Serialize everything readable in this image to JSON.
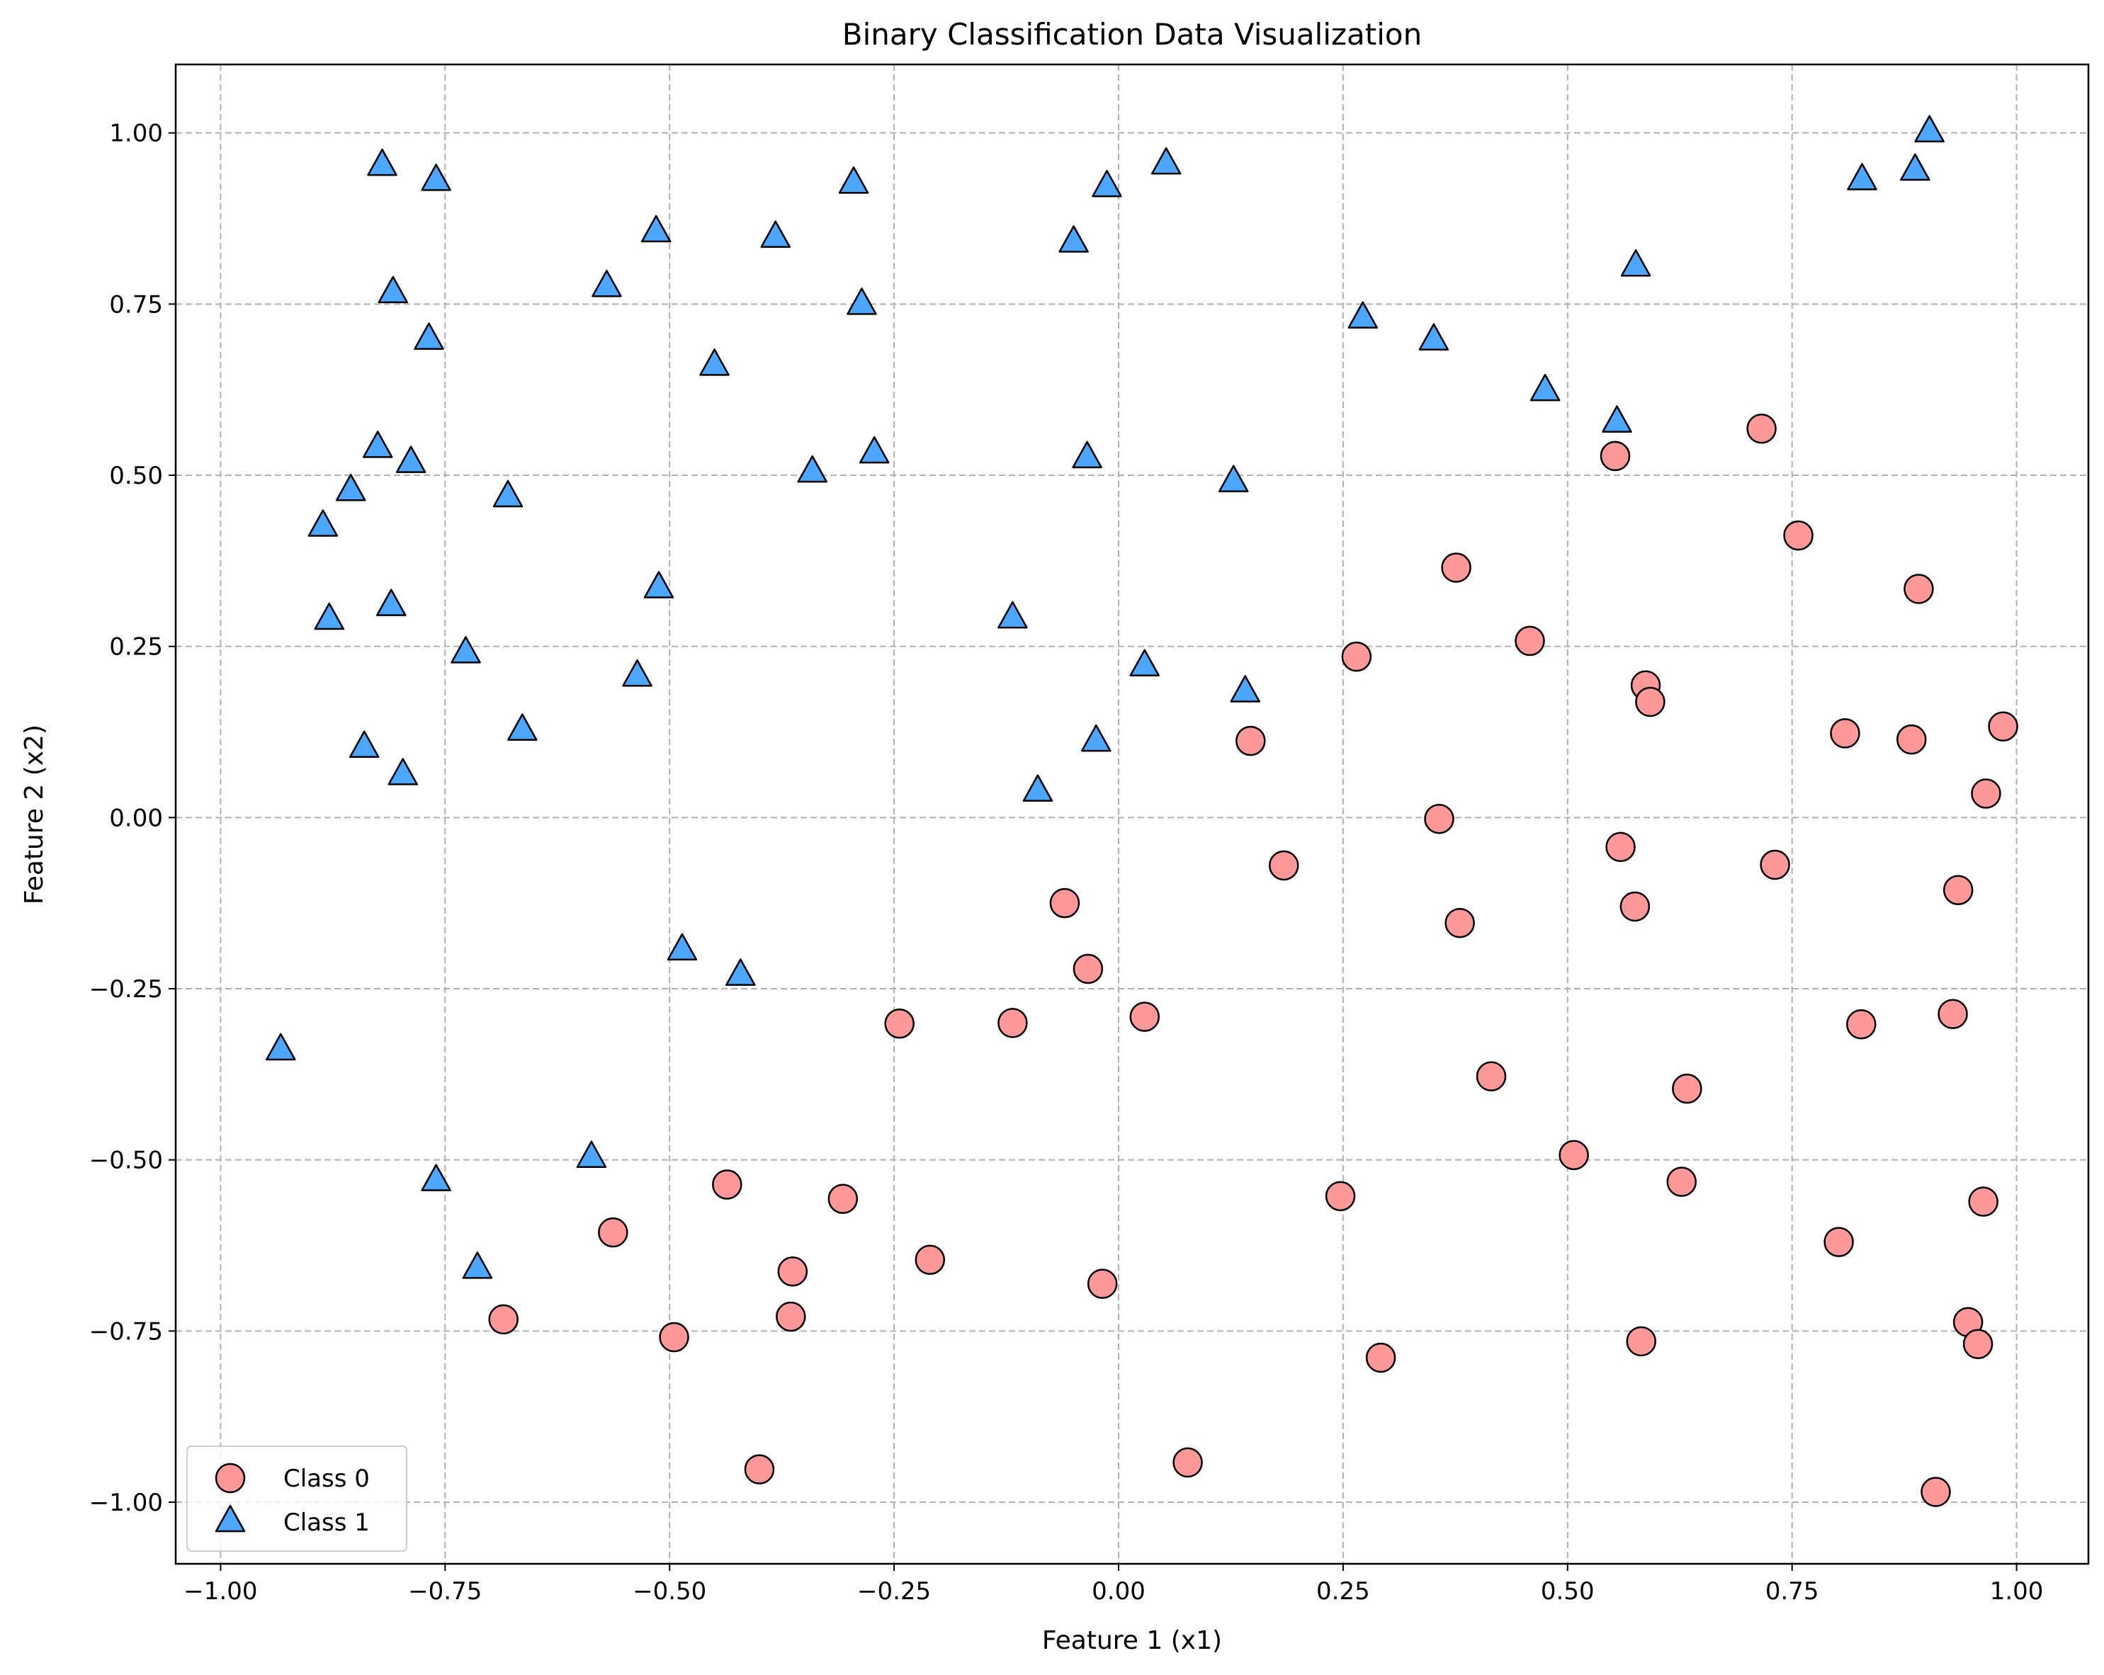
{
  "chart_data": {
    "type": "scatter",
    "title": "Binary Classification Data Visualization",
    "xlabel": "Feature 1 (x1)",
    "ylabel": "Feature 2 (x2)",
    "xlim": [
      -1.05,
      1.08
    ],
    "ylim": [
      -1.09,
      1.1
    ],
    "xticks": [
      -1.0,
      -0.75,
      -0.5,
      -0.25,
      0.0,
      0.25,
      0.5,
      0.75,
      1.0
    ],
    "xtick_labels": [
      "−1.00",
      "−0.75",
      "−0.50",
      "−0.25",
      "0.00",
      "0.25",
      "0.50",
      "0.75",
      "1.00"
    ],
    "yticks": [
      -1.0,
      -0.75,
      -0.5,
      -0.25,
      0.0,
      0.25,
      0.5,
      0.75,
      1.0
    ],
    "ytick_labels": [
      "−1.00",
      "−0.75",
      "−0.50",
      "−0.25",
      "0.00",
      "0.25",
      "0.50",
      "0.75",
      "1.00"
    ],
    "grid": true,
    "legend_position": "lower left",
    "series": [
      {
        "name": "Class 0",
        "marker": "circle",
        "color": "#ff9999",
        "edgecolor": "#000000",
        "points": [
          [
            0.716,
            0.568
          ],
          [
            0.553,
            0.528
          ],
          [
            0.757,
            0.412
          ],
          [
            0.891,
            0.334
          ],
          [
            0.376,
            0.365
          ],
          [
            0.458,
            0.258
          ],
          [
            0.265,
            0.235
          ],
          [
            0.587,
            0.193
          ],
          [
            0.592,
            0.169
          ],
          [
            0.147,
            0.112
          ],
          [
            0.809,
            0.123
          ],
          [
            0.883,
            0.114
          ],
          [
            0.985,
            0.133
          ],
          [
            0.966,
            0.035
          ],
          [
            0.357,
            -0.002
          ],
          [
            0.559,
            -0.043
          ],
          [
            0.731,
            -0.069
          ],
          [
            0.184,
            -0.07
          ],
          [
            0.935,
            -0.106
          ],
          [
            -0.06,
            -0.125
          ],
          [
            0.575,
            -0.13
          ],
          [
            0.38,
            -0.154
          ],
          [
            -0.034,
            -0.221
          ],
          [
            -0.244,
            -0.301
          ],
          [
            -0.118,
            -0.3
          ],
          [
            0.029,
            -0.291
          ],
          [
            0.827,
            -0.302
          ],
          [
            0.929,
            -0.287
          ],
          [
            0.415,
            -0.378
          ],
          [
            0.633,
            -0.396
          ],
          [
            0.507,
            -0.493
          ],
          [
            0.247,
            -0.553
          ],
          [
            0.627,
            -0.532
          ],
          [
            -0.436,
            -0.536
          ],
          [
            -0.307,
            -0.557
          ],
          [
            0.963,
            -0.561
          ],
          [
            -0.563,
            -0.606
          ],
          [
            0.802,
            -0.62
          ],
          [
            -0.21,
            -0.646
          ],
          [
            -0.363,
            -0.663
          ],
          [
            -0.018,
            -0.681
          ],
          [
            -0.365,
            -0.729
          ],
          [
            -0.685,
            -0.733
          ],
          [
            0.946,
            -0.737
          ],
          [
            -0.495,
            -0.759
          ],
          [
            0.582,
            -0.765
          ],
          [
            0.957,
            -0.769
          ],
          [
            0.292,
            -0.789
          ],
          [
            -0.4,
            -0.952
          ],
          [
            0.077,
            -0.942
          ],
          [
            0.91,
            -0.985
          ]
        ]
      },
      {
        "name": "Class 1",
        "marker": "triangle",
        "color": "#4da6ff",
        "edgecolor": "#000000",
        "points": [
          [
            -0.82,
            0.953
          ],
          [
            -0.76,
            0.931
          ],
          [
            -0.295,
            0.927
          ],
          [
            -0.013,
            0.922
          ],
          [
            0.053,
            0.955
          ],
          [
            0.903,
            1.002
          ],
          [
            0.828,
            0.932
          ],
          [
            0.887,
            0.946
          ],
          [
            -0.515,
            0.856
          ],
          [
            -0.382,
            0.848
          ],
          [
            -0.05,
            0.841
          ],
          [
            0.576,
            0.806
          ],
          [
            -0.808,
            0.767
          ],
          [
            -0.57,
            0.776
          ],
          [
            -0.286,
            0.75
          ],
          [
            0.272,
            0.73
          ],
          [
            -0.768,
            0.699
          ],
          [
            0.351,
            0.698
          ],
          [
            -0.45,
            0.661
          ],
          [
            0.475,
            0.624
          ],
          [
            0.555,
            0.578
          ],
          [
            -0.825,
            0.541
          ],
          [
            -0.788,
            0.519
          ],
          [
            -0.272,
            0.533
          ],
          [
            -0.035,
            0.526
          ],
          [
            -0.341,
            0.505
          ],
          [
            0.128,
            0.491
          ],
          [
            -0.855,
            0.478
          ],
          [
            -0.68,
            0.469
          ],
          [
            -0.886,
            0.426
          ],
          [
            -0.512,
            0.336
          ],
          [
            -0.81,
            0.31
          ],
          [
            -0.879,
            0.29
          ],
          [
            -0.118,
            0.292
          ],
          [
            -0.727,
            0.241
          ],
          [
            0.029,
            0.222
          ],
          [
            -0.536,
            0.207
          ],
          [
            0.141,
            0.184
          ],
          [
            -0.664,
            0.128
          ],
          [
            -0.025,
            0.112
          ],
          [
            -0.84,
            0.103
          ],
          [
            -0.797,
            0.063
          ],
          [
            -0.09,
            0.039
          ],
          [
            -0.486,
            -0.193
          ],
          [
            -0.421,
            -0.23
          ],
          [
            -0.933,
            -0.339
          ],
          [
            -0.587,
            -0.496
          ],
          [
            -0.76,
            -0.53
          ],
          [
            -0.714,
            -0.658
          ]
        ]
      }
    ]
  }
}
